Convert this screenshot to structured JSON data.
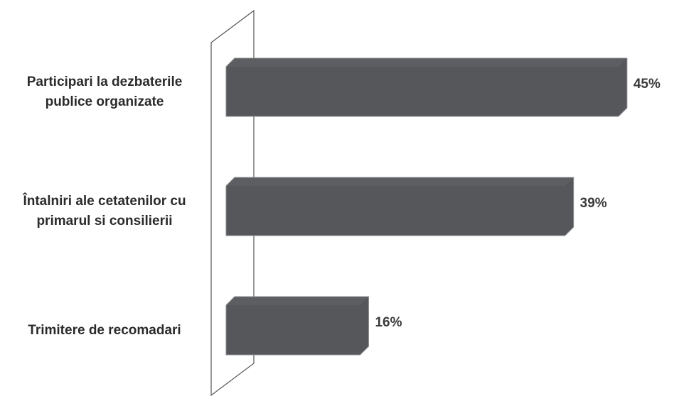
{
  "chart_data": {
    "type": "bar",
    "orientation": "horizontal",
    "categories": [
      [
        "Participari la dezbaterile",
        "publice organizate"
      ],
      [
        "Întalniri ale cetatenilor cu",
        "primarul si consilierii"
      ],
      [
        "Trimitere de recomadari"
      ]
    ],
    "values": [
      45,
      39,
      16
    ],
    "value_labels": [
      "45%",
      "39%",
      "16%"
    ],
    "title": "",
    "xlabel": "",
    "ylabel": "",
    "xlim": [
      0,
      45
    ],
    "grid": false,
    "legend": "none",
    "colors": {
      "bar_face": "#55575a",
      "bar_top": "#6a6c70",
      "bar_edge": "#8a8c8f",
      "wall": "#444444"
    }
  }
}
